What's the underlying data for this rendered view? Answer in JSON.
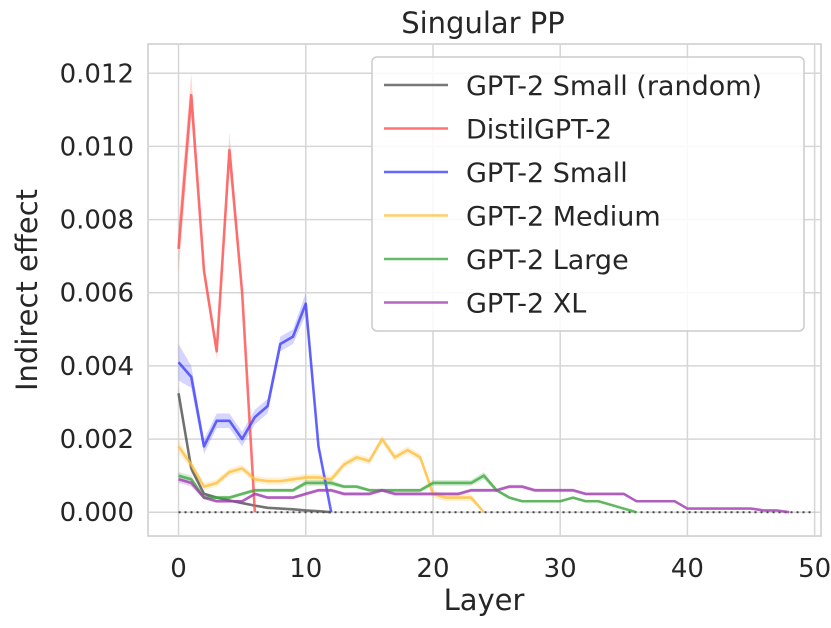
{
  "chart_data": {
    "type": "line",
    "title": "Singular PP",
    "xlabel": "Layer",
    "ylabel": "Indirect effect",
    "xlim": [
      -2.4,
      50.5
    ],
    "ylim": [
      -0.00065,
      0.0128
    ],
    "xticks": [
      0,
      10,
      20,
      30,
      40,
      50
    ],
    "xtick_labels": [
      "0",
      "10",
      "20",
      "30",
      "40",
      "50"
    ],
    "yticks": [
      0,
      0.002,
      0.004,
      0.006,
      0.008,
      0.01,
      0.012
    ],
    "ytick_labels": [
      "0.000",
      "0.002",
      "0.004",
      "0.006",
      "0.008",
      "0.010",
      "0.012"
    ],
    "grid": true,
    "legend_position": "top-right",
    "baseline": {
      "y": 0,
      "x_range": [
        0,
        50
      ],
      "style": "dotted"
    },
    "series": [
      {
        "name": "GPT-2 Small (random)",
        "color": "#555555",
        "x": [
          0,
          1,
          2,
          3,
          4,
          5,
          6,
          7,
          8,
          9,
          10,
          11,
          12
        ],
        "values": [
          0.00325,
          0.0012,
          0.0005,
          0.0004,
          0.00032,
          0.00025,
          0.00018,
          0.00012,
          0.0001,
          8e-05,
          5e-05,
          3e-05,
          0.0
        ],
        "band": [
          0.0002,
          0.00012,
          5e-05,
          4e-05,
          3e-05,
          3e-05,
          2e-05,
          2e-05,
          1e-05,
          1e-05,
          1e-05,
          1e-05,
          0.0
        ]
      },
      {
        "name": "DistilGPT-2",
        "color": "#ff5050",
        "x": [
          0,
          1,
          2,
          3,
          4,
          5,
          6
        ],
        "values": [
          0.0072,
          0.0114,
          0.0066,
          0.0044,
          0.0099,
          0.006,
          0.0
        ],
        "band": [
          0.0007,
          0.0006,
          0.0002,
          0.0002,
          0.0005,
          0.0002,
          0.0
        ]
      },
      {
        "name": "GPT-2 Small",
        "color": "#4040ff",
        "x": [
          0,
          1,
          2,
          3,
          4,
          5,
          6,
          7,
          8,
          9,
          10,
          11,
          12
        ],
        "values": [
          0.0041,
          0.0037,
          0.0018,
          0.0025,
          0.0025,
          0.002,
          0.0026,
          0.0029,
          0.0046,
          0.0048,
          0.0057,
          0.0018,
          0.0
        ],
        "band": [
          0.0005,
          0.0003,
          0.0002,
          0.0002,
          0.0002,
          0.0002,
          0.0002,
          0.0002,
          0.0002,
          0.0002,
          0.0003,
          0.0001,
          0.0
        ]
      },
      {
        "name": "GPT-2 Medium",
        "color": "#ffbf40",
        "x": [
          0,
          1,
          2,
          3,
          4,
          5,
          6,
          7,
          8,
          9,
          10,
          11,
          12,
          13,
          14,
          15,
          16,
          17,
          18,
          19,
          20,
          21,
          22,
          23,
          24
        ],
        "values": [
          0.0018,
          0.0013,
          0.0007,
          0.0008,
          0.0011,
          0.0012,
          0.0009,
          0.00085,
          0.00085,
          0.0009,
          0.00095,
          0.00095,
          0.0009,
          0.0013,
          0.0015,
          0.0014,
          0.002,
          0.0015,
          0.0017,
          0.0015,
          0.0005,
          0.0004,
          0.0004,
          0.0004,
          0.0
        ],
        "band": [
          0.0002,
          0.0001,
          0.0001,
          0.0001,
          0.0001,
          0.0001,
          0.0001,
          0.0001,
          0.0001,
          0.0001,
          0.0001,
          0.0001,
          0.0001,
          0.0001,
          0.0001,
          0.0001,
          0.0001,
          0.0001,
          0.0001,
          0.0001,
          0.0001,
          0.0001,
          0.0001,
          0.0001,
          0.0
        ]
      },
      {
        "name": "GPT-2 Large",
        "color": "#40aa40",
        "x": [
          0,
          1,
          2,
          3,
          4,
          5,
          6,
          7,
          8,
          9,
          10,
          11,
          12,
          13,
          14,
          15,
          16,
          17,
          18,
          19,
          20,
          21,
          22,
          23,
          24,
          25,
          26,
          27,
          28,
          29,
          30,
          31,
          32,
          33,
          34,
          35,
          36
        ],
        "values": [
          0.001,
          0.0009,
          0.0004,
          0.0004,
          0.0004,
          0.0005,
          0.0006,
          0.0006,
          0.0006,
          0.0006,
          0.0008,
          0.0008,
          0.0008,
          0.0007,
          0.0007,
          0.0006,
          0.0006,
          0.0006,
          0.0006,
          0.0006,
          0.0008,
          0.0008,
          0.0008,
          0.0008,
          0.001,
          0.0006,
          0.0004,
          0.0003,
          0.0003,
          0.0003,
          0.0003,
          0.0004,
          0.0003,
          0.0003,
          0.0002,
          0.0001,
          0.0
        ],
        "band": [
          0.0001,
          0.0001,
          5e-05,
          5e-05,
          5e-05,
          5e-05,
          5e-05,
          5e-05,
          5e-05,
          5e-05,
          8e-05,
          8e-05,
          8e-05,
          5e-05,
          5e-05,
          5e-05,
          5e-05,
          5e-05,
          5e-05,
          5e-05,
          8e-05,
          8e-05,
          8e-05,
          8e-05,
          0.0001,
          5e-05,
          4e-05,
          3e-05,
          3e-05,
          3e-05,
          3e-05,
          3e-05,
          3e-05,
          3e-05,
          2e-05,
          1e-05,
          0.0
        ]
      },
      {
        "name": "GPT-2 XL",
        "color": "#a040b0",
        "x": [
          0,
          1,
          2,
          3,
          4,
          5,
          6,
          7,
          8,
          9,
          10,
          11,
          12,
          13,
          14,
          15,
          16,
          17,
          18,
          19,
          20,
          21,
          22,
          23,
          24,
          25,
          26,
          27,
          28,
          29,
          30,
          31,
          32,
          33,
          34,
          35,
          36,
          37,
          38,
          39,
          40,
          41,
          42,
          43,
          44,
          45,
          46,
          47,
          48
        ],
        "values": [
          0.0009,
          0.0008,
          0.0004,
          0.0003,
          0.0003,
          0.0003,
          0.0005,
          0.0004,
          0.0004,
          0.0004,
          0.0005,
          0.0006,
          0.0006,
          0.0005,
          0.0005,
          0.0005,
          0.0006,
          0.0005,
          0.0005,
          0.0005,
          0.0005,
          0.0005,
          0.0005,
          0.0006,
          0.0006,
          0.0006,
          0.0007,
          0.0007,
          0.0006,
          0.0006,
          0.0006,
          0.0006,
          0.0005,
          0.0005,
          0.0005,
          0.0005,
          0.0003,
          0.0003,
          0.0003,
          0.0003,
          0.0001,
          0.0001,
          0.0001,
          0.0001,
          0.0001,
          0.0001,
          5e-05,
          5e-05,
          0.0
        ],
        "band": [
          0.0001,
          0.0001,
          5e-05,
          4e-05,
          4e-05,
          4e-05,
          5e-05,
          4e-05,
          4e-05,
          4e-05,
          5e-05,
          5e-05,
          5e-05,
          5e-05,
          5e-05,
          5e-05,
          5e-05,
          5e-05,
          5e-05,
          5e-05,
          5e-05,
          5e-05,
          5e-05,
          5e-05,
          5e-05,
          5e-05,
          5e-05,
          5e-05,
          5e-05,
          5e-05,
          5e-05,
          5e-05,
          4e-05,
          4e-05,
          4e-05,
          4e-05,
          3e-05,
          3e-05,
          3e-05,
          3e-05,
          2e-05,
          2e-05,
          2e-05,
          2e-05,
          2e-05,
          2e-05,
          1e-05,
          1e-05,
          0.0
        ]
      }
    ]
  }
}
